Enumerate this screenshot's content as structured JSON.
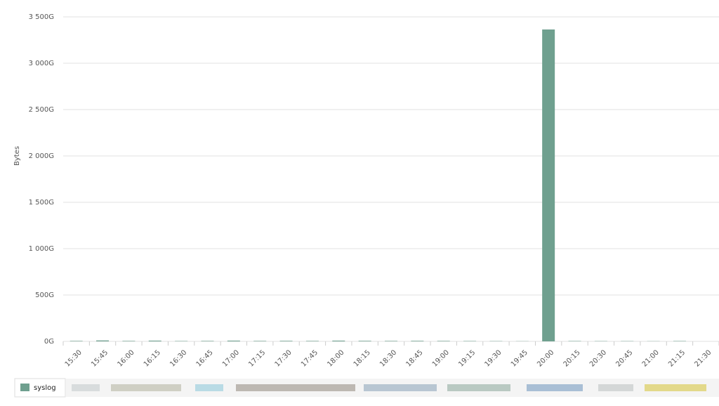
{
  "chart_data": {
    "type": "bar",
    "y_label": "Bytes",
    "categories": [
      "15:30",
      "15:45",
      "16:00",
      "16:15",
      "16:30",
      "16:45",
      "17:00",
      "17:15",
      "17:30",
      "17:45",
      "18:00",
      "18:15",
      "18:30",
      "18:45",
      "19:00",
      "19:15",
      "19:30",
      "19:45",
      "20:00",
      "20:15",
      "20:30",
      "20:45",
      "21:00",
      "21:15",
      "21:30"
    ],
    "series": [
      {
        "name": "syslog",
        "color": "#6fa08f",
        "values": [
          5,
          10,
          5,
          8,
          4,
          5,
          8,
          5,
          6,
          5,
          8,
          6,
          5,
          6,
          5,
          4,
          3,
          2,
          3364,
          4,
          3,
          3,
          2,
          4,
          0
        ]
      }
    ],
    "ylim": [
      0,
      3500
    ],
    "yticks": [
      {
        "value": 0,
        "label": "0G"
      },
      {
        "value": 500,
        "label": "500G"
      },
      {
        "value": 1000,
        "label": "1 000G"
      },
      {
        "value": 1500,
        "label": "1 500G"
      },
      {
        "value": 2000,
        "label": "2 000G"
      },
      {
        "value": 2500,
        "label": "2 500G"
      },
      {
        "value": 3000,
        "label": "3 000G"
      },
      {
        "value": 3500,
        "label": "3 500G"
      }
    ],
    "grid": true
  }
}
